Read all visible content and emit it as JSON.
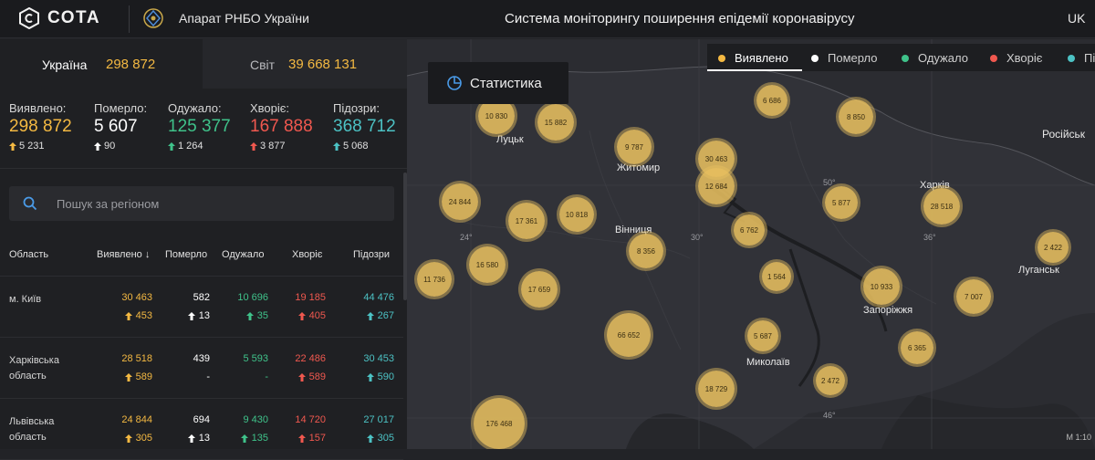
{
  "header": {
    "logo_text": "СОТА",
    "org": "Апарат РНБО України",
    "title": "Система моніторингу поширення епідемії коронавірусу",
    "lang": "UK"
  },
  "tabs": {
    "ukraine": {
      "label": "Україна",
      "value": "298 872"
    },
    "world": {
      "label": "Світ",
      "value": "39 668 131"
    }
  },
  "stats": [
    {
      "label": "Виявлено:",
      "value": "298 872",
      "delta": "5 231",
      "color": "#f4b942"
    },
    {
      "label": "Померло:",
      "value": "5 607",
      "delta": "90",
      "color": "#ffffff"
    },
    {
      "label": "Одужало:",
      "value": "125 377",
      "delta": "1 264",
      "color": "#3fc28a"
    },
    {
      "label": "Хворіє:",
      "value": "167 888",
      "delta": "3 877",
      "color": "#f0584f"
    },
    {
      "label": "Підозри:",
      "value": "368 712",
      "delta": "5 068",
      "color": "#4cc2c4"
    }
  ],
  "search": {
    "placeholder": "Пошук за регіоном"
  },
  "table": {
    "headers": [
      "Область",
      "Виявлено",
      "Померло",
      "Одужало",
      "Хворіє",
      "Підозри"
    ],
    "rows": [
      {
        "region": "м. Київ",
        "detected": "30 463",
        "detected_d": "453",
        "died": "582",
        "died_d": "13",
        "recovered": "10 696",
        "recovered_d": "35",
        "sick": "19 185",
        "sick_d": "405",
        "suspect": "44 476",
        "suspect_d": "267"
      },
      {
        "region": "Харківська область",
        "detected": "28 518",
        "detected_d": "589",
        "died": "439",
        "died_d": "-",
        "recovered": "5 593",
        "recovered_d": "-",
        "sick": "22 486",
        "sick_d": "589",
        "suspect": "30 453",
        "suspect_d": "590"
      },
      {
        "region": "Львівська область",
        "detected": "24 844",
        "detected_d": "305",
        "died": "694",
        "died_d": "13",
        "recovered": "9 430",
        "recovered_d": "135",
        "sick": "14 720",
        "sick_d": "157",
        "suspect": "27 017",
        "suspect_d": "305"
      }
    ]
  },
  "map": {
    "stat_button": "Статистика",
    "legend": [
      {
        "label": "Виявлено",
        "color": "#f4b942"
      },
      {
        "label": "Померло",
        "color": "#ffffff"
      },
      {
        "label": "Одужало",
        "color": "#3fc28a"
      },
      {
        "label": "Хворіє",
        "color": "#f0584f"
      },
      {
        "label": "Пі",
        "color": "#4cc2c4"
      }
    ],
    "bubbles": [
      "10 830",
      "15 882",
      "6 686",
      "8 850",
      "9 787",
      "30 463",
      "12 684",
      "24 844",
      "17 361",
      "10 818",
      "5 877",
      "28 518",
      "6 762",
      "8 356",
      "2 422",
      "16 580",
      "11 736",
      "17 659",
      "1 564",
      "10 933",
      "7 007",
      "66 652",
      "5 687",
      "6 365",
      "18 729",
      "2 472",
      "176 468"
    ],
    "cities": [
      "Луцьк",
      "Житомир",
      "Вінниця",
      "Харків",
      "Луганськ",
      "Запоріжжя",
      "Миколаїв",
      "Російськ"
    ],
    "grid_labels": [
      "24°",
      "30°",
      "36°",
      "50°",
      "46°"
    ],
    "scale": "M 1:10"
  }
}
